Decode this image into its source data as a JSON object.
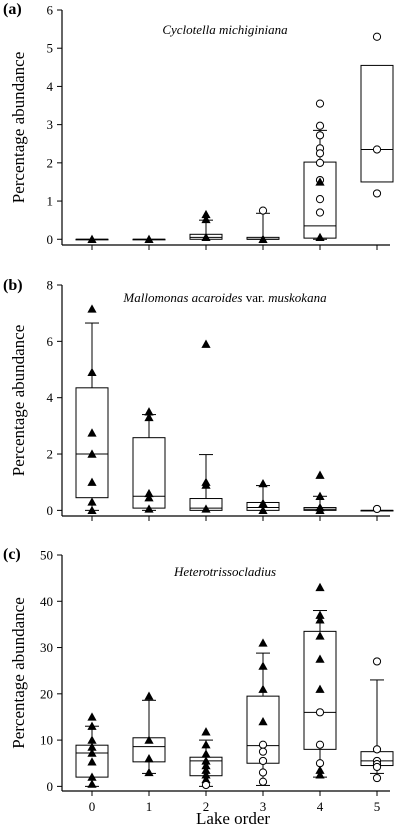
{
  "figure": {
    "xlabel": "Lake order"
  },
  "chart_data": [
    {
      "type": "box",
      "panel_label": "(a)",
      "title": [
        {
          "text": "Cyclotella michiginiana",
          "italic": true
        }
      ],
      "xlabel": "Lake order",
      "ylabel": "Percentage abundance",
      "categories": [
        "0",
        "1",
        "2",
        "3",
        "4",
        "5"
      ],
      "ylim": [
        -0.15,
        6
      ],
      "yticks": [
        0,
        1,
        2,
        3,
        4,
        5,
        6
      ],
      "boxes": [
        {
          "category": "0",
          "q1": 0,
          "median": 0,
          "q3": 0,
          "whisker_low": 0,
          "whisker_high": 0
        },
        {
          "category": "1",
          "q1": 0,
          "median": 0,
          "q3": 0,
          "whisker_low": 0,
          "whisker_high": 0
        },
        {
          "category": "2",
          "q1": 0,
          "median": 0.05,
          "q3": 0.13,
          "whisker_low": 0,
          "whisker_high": 0.5
        },
        {
          "category": "3",
          "q1": 0,
          "median": 0,
          "q3": 0.05,
          "whisker_low": 0,
          "whisker_high": 0.68
        },
        {
          "category": "4",
          "q1": 0.03,
          "median": 0.35,
          "q3": 2.02,
          "whisker_low": 0,
          "whisker_high": 2.85
        },
        {
          "category": "5",
          "q1": 1.5,
          "median": 2.35,
          "q3": 4.55,
          "whisker_low": 1.5,
          "whisker_high": 4.55
        }
      ],
      "points": [
        {
          "category": "0",
          "y": 0,
          "marker": "triangle"
        },
        {
          "category": "1",
          "y": 0,
          "marker": "triangle"
        },
        {
          "category": "2",
          "y": 0.65,
          "marker": "triangle"
        },
        {
          "category": "2",
          "y": 0.52,
          "marker": "triangle"
        },
        {
          "category": "2",
          "y": 0.05,
          "marker": "triangle"
        },
        {
          "category": "3",
          "y": 0.75,
          "marker": "circle"
        },
        {
          "category": "3",
          "y": 0,
          "marker": "triangle"
        },
        {
          "category": "4",
          "y": 3.55,
          "marker": "circle"
        },
        {
          "category": "4",
          "y": 2.97,
          "marker": "circle"
        },
        {
          "category": "4",
          "y": 2.72,
          "marker": "circle"
        },
        {
          "category": "4",
          "y": 2.38,
          "marker": "circle"
        },
        {
          "category": "4",
          "y": 2.25,
          "marker": "circle"
        },
        {
          "category": "4",
          "y": 2.0,
          "marker": "circle"
        },
        {
          "category": "4",
          "y": 1.55,
          "marker": "circle"
        },
        {
          "category": "4",
          "y": 1.5,
          "marker": "triangle"
        },
        {
          "category": "4",
          "y": 1.05,
          "marker": "circle"
        },
        {
          "category": "4",
          "y": 0.7,
          "marker": "circle"
        },
        {
          "category": "4",
          "y": 0.05,
          "marker": "triangle"
        },
        {
          "category": "5",
          "y": 5.3,
          "marker": "circle"
        },
        {
          "category": "5",
          "y": 2.35,
          "marker": "circle"
        },
        {
          "category": "5",
          "y": 1.2,
          "marker": "circle"
        }
      ]
    },
    {
      "type": "box",
      "panel_label": "(b)",
      "title": [
        {
          "text": "Mallomonas acaroides",
          "italic": true
        },
        {
          "text": " var. ",
          "italic": false
        },
        {
          "text": "muskokana",
          "italic": true
        }
      ],
      "xlabel": "Lake order",
      "ylabel": "Percentage abundance",
      "categories": [
        "0",
        "1",
        "2",
        "3",
        "4",
        "5"
      ],
      "ylim": [
        -0.2,
        8
      ],
      "yticks": [
        0,
        2,
        4,
        6,
        8
      ],
      "boxes": [
        {
          "category": "0",
          "q1": 0.45,
          "median": 2.0,
          "q3": 4.35,
          "whisker_low": 0,
          "whisker_high": 6.65
        },
        {
          "category": "1",
          "q1": 0.08,
          "median": 0.5,
          "q3": 2.58,
          "whisker_low": 0,
          "whisker_high": 3.4
        },
        {
          "category": "2",
          "q1": 0,
          "median": 0.08,
          "q3": 0.42,
          "whisker_low": 0,
          "whisker_high": 1.98
        },
        {
          "category": "3",
          "q1": 0,
          "median": 0.1,
          "q3": 0.28,
          "whisker_low": 0,
          "whisker_high": 0.88
        },
        {
          "category": "4",
          "q1": 0,
          "median": 0.04,
          "q3": 0.1,
          "whisker_low": 0,
          "whisker_high": 0.5
        },
        {
          "category": "5",
          "q1": 0,
          "median": 0,
          "q3": 0,
          "whisker_low": 0,
          "whisker_high": 0
        }
      ],
      "points": [
        {
          "category": "0",
          "y": 7.15,
          "marker": "triangle"
        },
        {
          "category": "0",
          "y": 4.9,
          "marker": "triangle"
        },
        {
          "category": "0",
          "y": 2.75,
          "marker": "triangle"
        },
        {
          "category": "0",
          "y": 2.0,
          "marker": "triangle"
        },
        {
          "category": "0",
          "y": 1.0,
          "marker": "triangle"
        },
        {
          "category": "0",
          "y": 0.3,
          "marker": "triangle"
        },
        {
          "category": "0",
          "y": 0,
          "marker": "triangle"
        },
        {
          "category": "1",
          "y": 3.5,
          "marker": "triangle"
        },
        {
          "category": "1",
          "y": 3.3,
          "marker": "triangle"
        },
        {
          "category": "1",
          "y": 0.6,
          "marker": "triangle"
        },
        {
          "category": "1",
          "y": 0.45,
          "marker": "triangle"
        },
        {
          "category": "1",
          "y": 0.05,
          "marker": "triangle"
        },
        {
          "category": "2",
          "y": 5.9,
          "marker": "triangle"
        },
        {
          "category": "2",
          "y": 1.0,
          "marker": "triangle"
        },
        {
          "category": "2",
          "y": 0.9,
          "marker": "triangle"
        },
        {
          "category": "2",
          "y": 0.05,
          "marker": "triangle"
        },
        {
          "category": "3",
          "y": 0.95,
          "marker": "triangle"
        },
        {
          "category": "3",
          "y": 0.25,
          "marker": "triangle"
        },
        {
          "category": "3",
          "y": 0,
          "marker": "triangle"
        },
        {
          "category": "4",
          "y": 1.25,
          "marker": "triangle"
        },
        {
          "category": "4",
          "y": 0.5,
          "marker": "triangle"
        },
        {
          "category": "4",
          "y": 0.1,
          "marker": "triangle"
        },
        {
          "category": "4",
          "y": 0,
          "marker": "triangle"
        },
        {
          "category": "5",
          "y": 0.05,
          "marker": "circle"
        }
      ]
    },
    {
      "type": "box",
      "panel_label": "(c)",
      "title": [
        {
          "text": "Heterotrissocladius",
          "italic": true
        }
      ],
      "xlabel": "Lake order",
      "ylabel": "Percentage abundance",
      "categories": [
        "0",
        "1",
        "2",
        "3",
        "4",
        "5"
      ],
      "ylim": [
        -1,
        50
      ],
      "yticks": [
        0,
        10,
        20,
        30,
        40,
        50
      ],
      "boxes": [
        {
          "category": "0",
          "q1": 2.0,
          "median": 7.2,
          "q3": 8.9,
          "whisker_low": 0,
          "whisker_high": 13.0
        },
        {
          "category": "1",
          "q1": 5.3,
          "median": 8.6,
          "q3": 10.5,
          "whisker_low": 2.8,
          "whisker_high": 18.6
        },
        {
          "category": "2",
          "q1": 2.3,
          "median": 5.5,
          "q3": 6.3,
          "whisker_low": 0,
          "whisker_high": 10.0
        },
        {
          "category": "3",
          "q1": 5.0,
          "median": 8.8,
          "q3": 19.5,
          "whisker_low": 0.2,
          "whisker_high": 28.8
        },
        {
          "category": "4",
          "q1": 8.0,
          "median": 16.0,
          "q3": 33.5,
          "whisker_low": 2.0,
          "whisker_high": 38.0
        },
        {
          "category": "5",
          "q1": 4.5,
          "median": 5.5,
          "q3": 7.5,
          "whisker_low": 2.8,
          "whisker_high": 23.0
        }
      ],
      "points": [
        {
          "category": "0",
          "y": 15.0,
          "marker": "triangle"
        },
        {
          "category": "0",
          "y": 13.0,
          "marker": "triangle"
        },
        {
          "category": "0",
          "y": 10.0,
          "marker": "triangle"
        },
        {
          "category": "0",
          "y": 8.5,
          "marker": "triangle"
        },
        {
          "category": "0",
          "y": 7.2,
          "marker": "triangle"
        },
        {
          "category": "0",
          "y": 5.3,
          "marker": "triangle"
        },
        {
          "category": "0",
          "y": 2.0,
          "marker": "triangle"
        },
        {
          "category": "0",
          "y": 0.5,
          "marker": "triangle"
        },
        {
          "category": "1",
          "y": 19.5,
          "marker": "triangle"
        },
        {
          "category": "1",
          "y": 10.0,
          "marker": "triangle"
        },
        {
          "category": "1",
          "y": 6.0,
          "marker": "triangle"
        },
        {
          "category": "1",
          "y": 3.0,
          "marker": "triangle"
        },
        {
          "category": "2",
          "y": 11.8,
          "marker": "triangle"
        },
        {
          "category": "2",
          "y": 9.0,
          "marker": "triangle"
        },
        {
          "category": "2",
          "y": 7.0,
          "marker": "triangle"
        },
        {
          "category": "2",
          "y": 5.5,
          "marker": "triangle"
        },
        {
          "category": "2",
          "y": 4.5,
          "marker": "triangle"
        },
        {
          "category": "2",
          "y": 3.5,
          "marker": "triangle"
        },
        {
          "category": "2",
          "y": 2.5,
          "marker": "triangle"
        },
        {
          "category": "2",
          "y": 1.5,
          "marker": "triangle"
        },
        {
          "category": "2",
          "y": 0.3,
          "marker": "circle"
        },
        {
          "category": "3",
          "y": 31.0,
          "marker": "triangle"
        },
        {
          "category": "3",
          "y": 26.0,
          "marker": "triangle"
        },
        {
          "category": "3",
          "y": 21.0,
          "marker": "triangle"
        },
        {
          "category": "3",
          "y": 14.0,
          "marker": "triangle"
        },
        {
          "category": "3",
          "y": 9.0,
          "marker": "circle"
        },
        {
          "category": "3",
          "y": 7.5,
          "marker": "circle"
        },
        {
          "category": "3",
          "y": 5.5,
          "marker": "circle"
        },
        {
          "category": "3",
          "y": 3.0,
          "marker": "circle"
        },
        {
          "category": "3",
          "y": 1.0,
          "marker": "circle"
        },
        {
          "category": "4",
          "y": 43.0,
          "marker": "triangle"
        },
        {
          "category": "4",
          "y": 37.0,
          "marker": "triangle"
        },
        {
          "category": "4",
          "y": 36.0,
          "marker": "triangle"
        },
        {
          "category": "4",
          "y": 32.5,
          "marker": "triangle"
        },
        {
          "category": "4",
          "y": 27.5,
          "marker": "triangle"
        },
        {
          "category": "4",
          "y": 21.0,
          "marker": "triangle"
        },
        {
          "category": "4",
          "y": 16.0,
          "marker": "circle"
        },
        {
          "category": "4",
          "y": 9.0,
          "marker": "circle"
        },
        {
          "category": "4",
          "y": 5.0,
          "marker": "circle"
        },
        {
          "category": "4",
          "y": 3.5,
          "marker": "triangle"
        },
        {
          "category": "4",
          "y": 2.5,
          "marker": "triangle"
        },
        {
          "category": "5",
          "y": 27.0,
          "marker": "circle"
        },
        {
          "category": "5",
          "y": 8.0,
          "marker": "circle"
        },
        {
          "category": "5",
          "y": 5.5,
          "marker": "circle"
        },
        {
          "category": "5",
          "y": 4.8,
          "marker": "circle"
        },
        {
          "category": "5",
          "y": 4.2,
          "marker": "circle"
        },
        {
          "category": "5",
          "y": 1.8,
          "marker": "circle"
        }
      ]
    }
  ]
}
